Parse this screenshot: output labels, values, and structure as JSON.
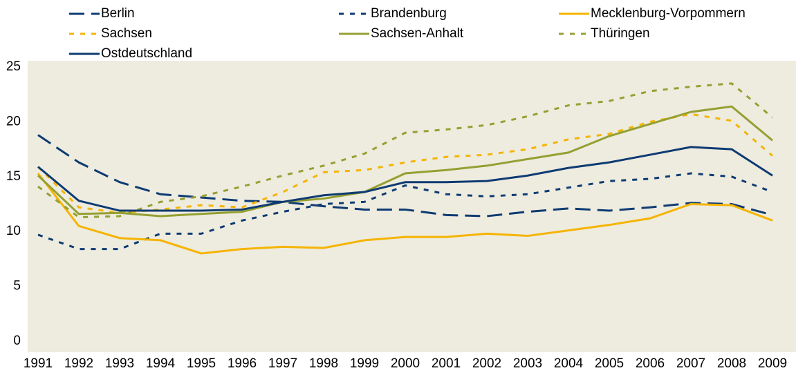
{
  "chart_data": {
    "type": "line",
    "categories": [
      "1991",
      "1992",
      "1993",
      "1994",
      "1995",
      "1996",
      "1997",
      "1998",
      "1999",
      "2000",
      "2001",
      "2002",
      "2003",
      "2004",
      "2005",
      "2006",
      "2007",
      "2008",
      "2009"
    ],
    "ylim": [
      0,
      25
    ],
    "yticks": [
      0,
      5,
      10,
      15,
      20,
      25
    ],
    "series": [
      {
        "name": "Berlin",
        "color": "#0d3b72",
        "dash": "long",
        "values": [
          18.8,
          16.3,
          14.5,
          13.4,
          13.1,
          12.8,
          12.7,
          12.3,
          12.0,
          12.0,
          11.5,
          11.4,
          11.8,
          12.1,
          11.9,
          12.2,
          12.6,
          12.5,
          11.5
        ]
      },
      {
        "name": "Brandenburg",
        "color": "#0d3b72",
        "dash": "dotted",
        "values": [
          9.7,
          8.4,
          8.4,
          9.8,
          9.8,
          11.0,
          11.8,
          12.5,
          12.7,
          14.2,
          13.4,
          13.2,
          13.4,
          14.0,
          14.6,
          14.8,
          15.3,
          15.0,
          13.6
        ]
      },
      {
        "name": "Mecklenburg-Vorpommern",
        "color": "#f5b400",
        "dash": "solid",
        "values": [
          15.3,
          10.5,
          9.4,
          9.2,
          8.0,
          8.4,
          8.6,
          8.5,
          9.2,
          9.5,
          9.5,
          9.8,
          9.6,
          10.1,
          10.6,
          11.2,
          12.5,
          12.4,
          11.0
        ]
      },
      {
        "name": "Sachsen",
        "color": "#f5b400",
        "dash": "dotted",
        "values": [
          15.9,
          12.2,
          11.7,
          12.0,
          12.4,
          12.2,
          13.6,
          15.4,
          15.6,
          16.3,
          16.8,
          17.0,
          17.5,
          18.4,
          18.9,
          20.0,
          20.7,
          20.1,
          16.9
        ]
      },
      {
        "name": "Sachsen-Anhalt",
        "color": "#94a031",
        "dash": "solid",
        "values": [
          15.1,
          11.6,
          11.7,
          11.4,
          11.6,
          11.8,
          12.7,
          13.0,
          13.6,
          15.3,
          15.6,
          16.0,
          16.6,
          17.2,
          18.7,
          19.8,
          20.9,
          21.4,
          18.3
        ]
      },
      {
        "name": "Thüringen",
        "color": "#94a031",
        "dash": "dotted",
        "values": [
          14.1,
          11.3,
          11.4,
          12.7,
          13.2,
          14.1,
          15.1,
          16.0,
          17.1,
          19.0,
          19.3,
          19.7,
          20.5,
          21.5,
          21.9,
          22.8,
          23.2,
          23.5,
          20.4
        ]
      },
      {
        "name": "Ostdeutschland",
        "color": "#0d3b72",
        "dash": "solid",
        "values": [
          15.9,
          12.8,
          11.9,
          11.9,
          11.9,
          12.0,
          12.7,
          13.3,
          13.6,
          14.5,
          14.5,
          14.6,
          15.1,
          15.8,
          16.3,
          17.0,
          17.7,
          17.5,
          15.1
        ]
      }
    ]
  }
}
